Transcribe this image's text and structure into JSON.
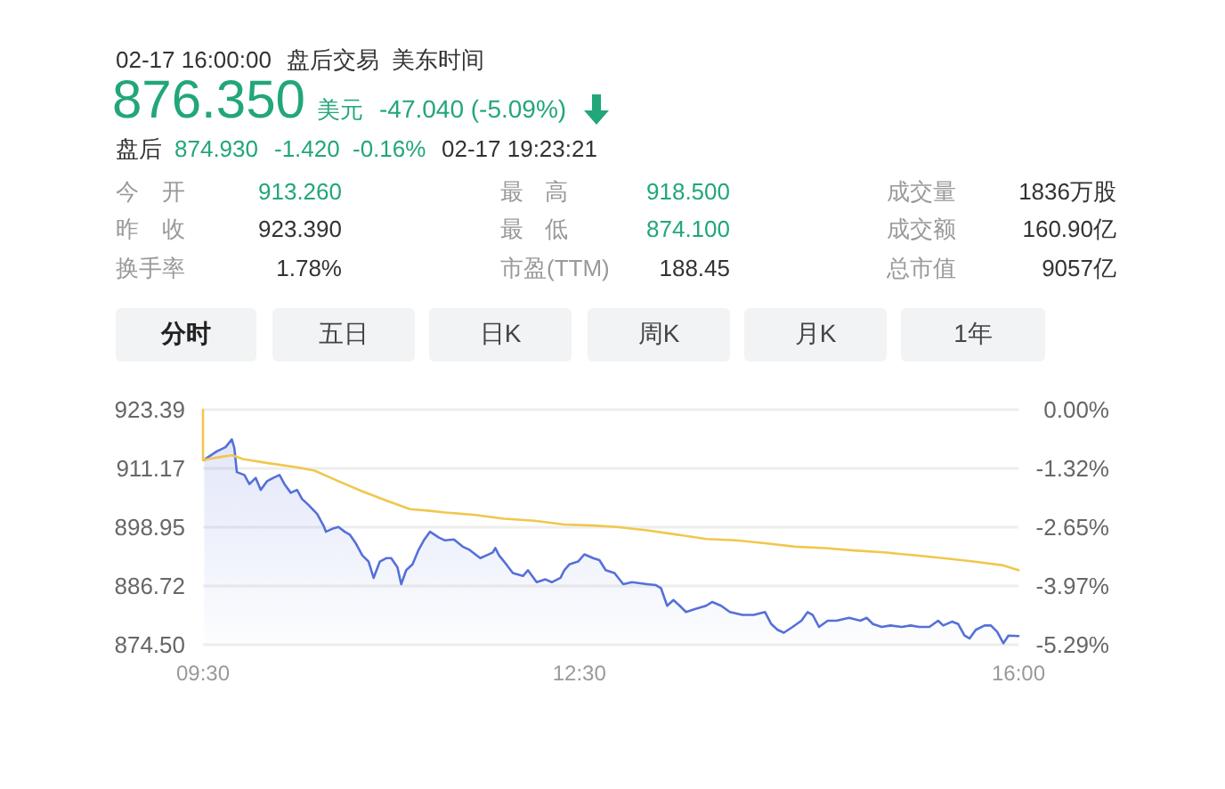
{
  "chart_data": {
    "type": "line",
    "annotations": [
      "02-17 16:00:00",
      "盘后交易",
      "美东时间",
      "876.350",
      "美元",
      "-47.040 (-5.09%)",
      "盘后",
      "874.930",
      "-1.420",
      "-0.16%",
      "02-17 19:23:21",
      "今开",
      "913.260",
      "最高",
      "918.500",
      "成交量",
      "1836万股",
      "昨收",
      "923.390",
      "最低",
      "874.100",
      "成交额",
      "160.90亿",
      "换手率",
      "1.78%",
      "市盈(TTM)",
      "188.45",
      "总市值",
      "9057亿",
      "分时",
      "五日",
      "日K",
      "周K",
      "月K",
      "1年"
    ],
    "xlim": [
      9.5,
      16
    ],
    "xticks": [
      {
        "value": 9.5,
        "label": "09:30"
      },
      {
        "value": 12.5,
        "label": "12:30"
      },
      {
        "value": 16,
        "label": "16:00"
      }
    ],
    "ylim": [
      874.5,
      923.39
    ],
    "yticks": [
      {
        "value": 874.5,
        "label": "874.50"
      },
      886.72,
      898.95,
      911.17,
      923.39
    ],
    "y2lim": [
      -5.29,
      0
    ],
    "y2ticks": [
      {
        "value": -5.29,
        "label": "-5.29%"
      },
      {
        "value": -3.97,
        "label": "-3.97%"
      },
      {
        "value": -2.65,
        "label": "-2.65%"
      },
      {
        "value": -1.32,
        "label": "-1.32%"
      },
      {
        "value": 0,
        "label": "0.00%"
      }
    ],
    "grid": "y",
    "series": [
      {
        "type": "area",
        "color": "#5570d8",
        "x": [
          9.51,
          9.54,
          9.61,
          9.68,
          9.73,
          9.75,
          9.77,
          9.83,
          9.87,
          9.92,
          9.96,
          10.01,
          10.06,
          10.11,
          10.15,
          10.2,
          10.25,
          10.29,
          10.34,
          10.41,
          10.46,
          10.48,
          10.53,
          10.58,
          10.63,
          10.67,
          10.72,
          10.77,
          10.82,
          10.86,
          10.91,
          10.96,
          11.0,
          11.05,
          11.08,
          11.12,
          11.17,
          11.22,
          11.26,
          11.31,
          11.38,
          11.43,
          11.5,
          11.57,
          11.62,
          11.71,
          11.76,
          11.81,
          11.83,
          11.86,
          11.9,
          11.97,
          12.05,
          12.09,
          12.16,
          12.23,
          12.28,
          12.35,
          12.38,
          12.42,
          12.49,
          12.54,
          12.61,
          12.66,
          12.71,
          12.78,
          12.85,
          12.92,
          13.04,
          13.11,
          13.15,
          13.2,
          13.25,
          13.3,
          13.35,
          13.42,
          13.51,
          13.56,
          13.63,
          13.7,
          13.8,
          13.89,
          13.98,
          14.03,
          14.08,
          14.13,
          14.2,
          14.27,
          14.32,
          14.36,
          14.41,
          14.48,
          14.55,
          14.65,
          14.74,
          14.79,
          14.84,
          14.91,
          14.98,
          15.07,
          15.14,
          15.21,
          15.29,
          15.36,
          15.4,
          15.47,
          15.52,
          15.57,
          15.61,
          15.66,
          15.73,
          15.78,
          15.83,
          15.88,
          15.92,
          16.0
        ],
        "values": [
          912.9,
          913.5,
          914.7,
          915.6,
          917.2,
          915.4,
          910.4,
          909.8,
          907.9,
          909.2,
          906.7,
          908.5,
          909.2,
          909.8,
          907.9,
          906.1,
          906.7,
          904.8,
          903.6,
          901.7,
          899.3,
          898.0,
          898.6,
          899.0,
          898.0,
          897.4,
          895.5,
          893.1,
          891.8,
          888.4,
          891.8,
          892.5,
          892.5,
          890.6,
          887.1,
          890.0,
          891.2,
          894.3,
          896.2,
          898.0,
          896.8,
          896.2,
          896.4,
          894.9,
          894.3,
          892.5,
          893.1,
          893.7,
          894.6,
          893.1,
          891.8,
          889.4,
          888.8,
          890.0,
          887.5,
          888.1,
          887.5,
          888.4,
          890.0,
          891.2,
          891.8,
          893.3,
          892.5,
          892.1,
          890.0,
          889.4,
          887.1,
          887.5,
          887.1,
          886.9,
          886.3,
          882.6,
          883.8,
          882.6,
          881.3,
          881.9,
          882.6,
          883.4,
          882.6,
          881.3,
          880.7,
          880.7,
          881.3,
          878.8,
          877.6,
          877.0,
          878.2,
          879.5,
          881.3,
          880.7,
          878.2,
          879.5,
          879.5,
          880.1,
          879.5,
          880.1,
          878.8,
          878.2,
          878.5,
          878.2,
          878.5,
          878.2,
          878.2,
          879.5,
          878.5,
          879.3,
          878.8,
          876.4,
          875.8,
          877.6,
          878.5,
          878.5,
          877.2,
          874.8,
          876.4,
          876.3
        ]
      },
      {
        "color": "#f0c74e",
        "x": [
          9.5,
          9.5,
          9.54,
          9.63,
          9.73,
          9.82,
          10.01,
          10.25,
          10.39,
          10.58,
          10.77,
          10.96,
          11.15,
          11.29,
          11.43,
          11.67,
          11.9,
          12.14,
          12.38,
          12.61,
          12.8,
          13.04,
          13.28,
          13.51,
          13.75,
          13.98,
          14.22,
          14.46,
          14.69,
          14.93,
          15.17,
          15.4,
          15.64,
          15.88,
          16.0
        ],
        "values": [
          923.39,
          912.9,
          913.1,
          913.5,
          913.9,
          913.1,
          912.3,
          911.4,
          910.7,
          908.5,
          906.4,
          904.5,
          902.7,
          902.4,
          902.0,
          901.5,
          900.7,
          900.3,
          899.5,
          899.3,
          899.0,
          898.3,
          897.4,
          896.5,
          896.2,
          895.6,
          894.9,
          894.6,
          894.1,
          893.7,
          893.1,
          892.5,
          891.8,
          891.0,
          890.0
        ]
      }
    ]
  }
}
